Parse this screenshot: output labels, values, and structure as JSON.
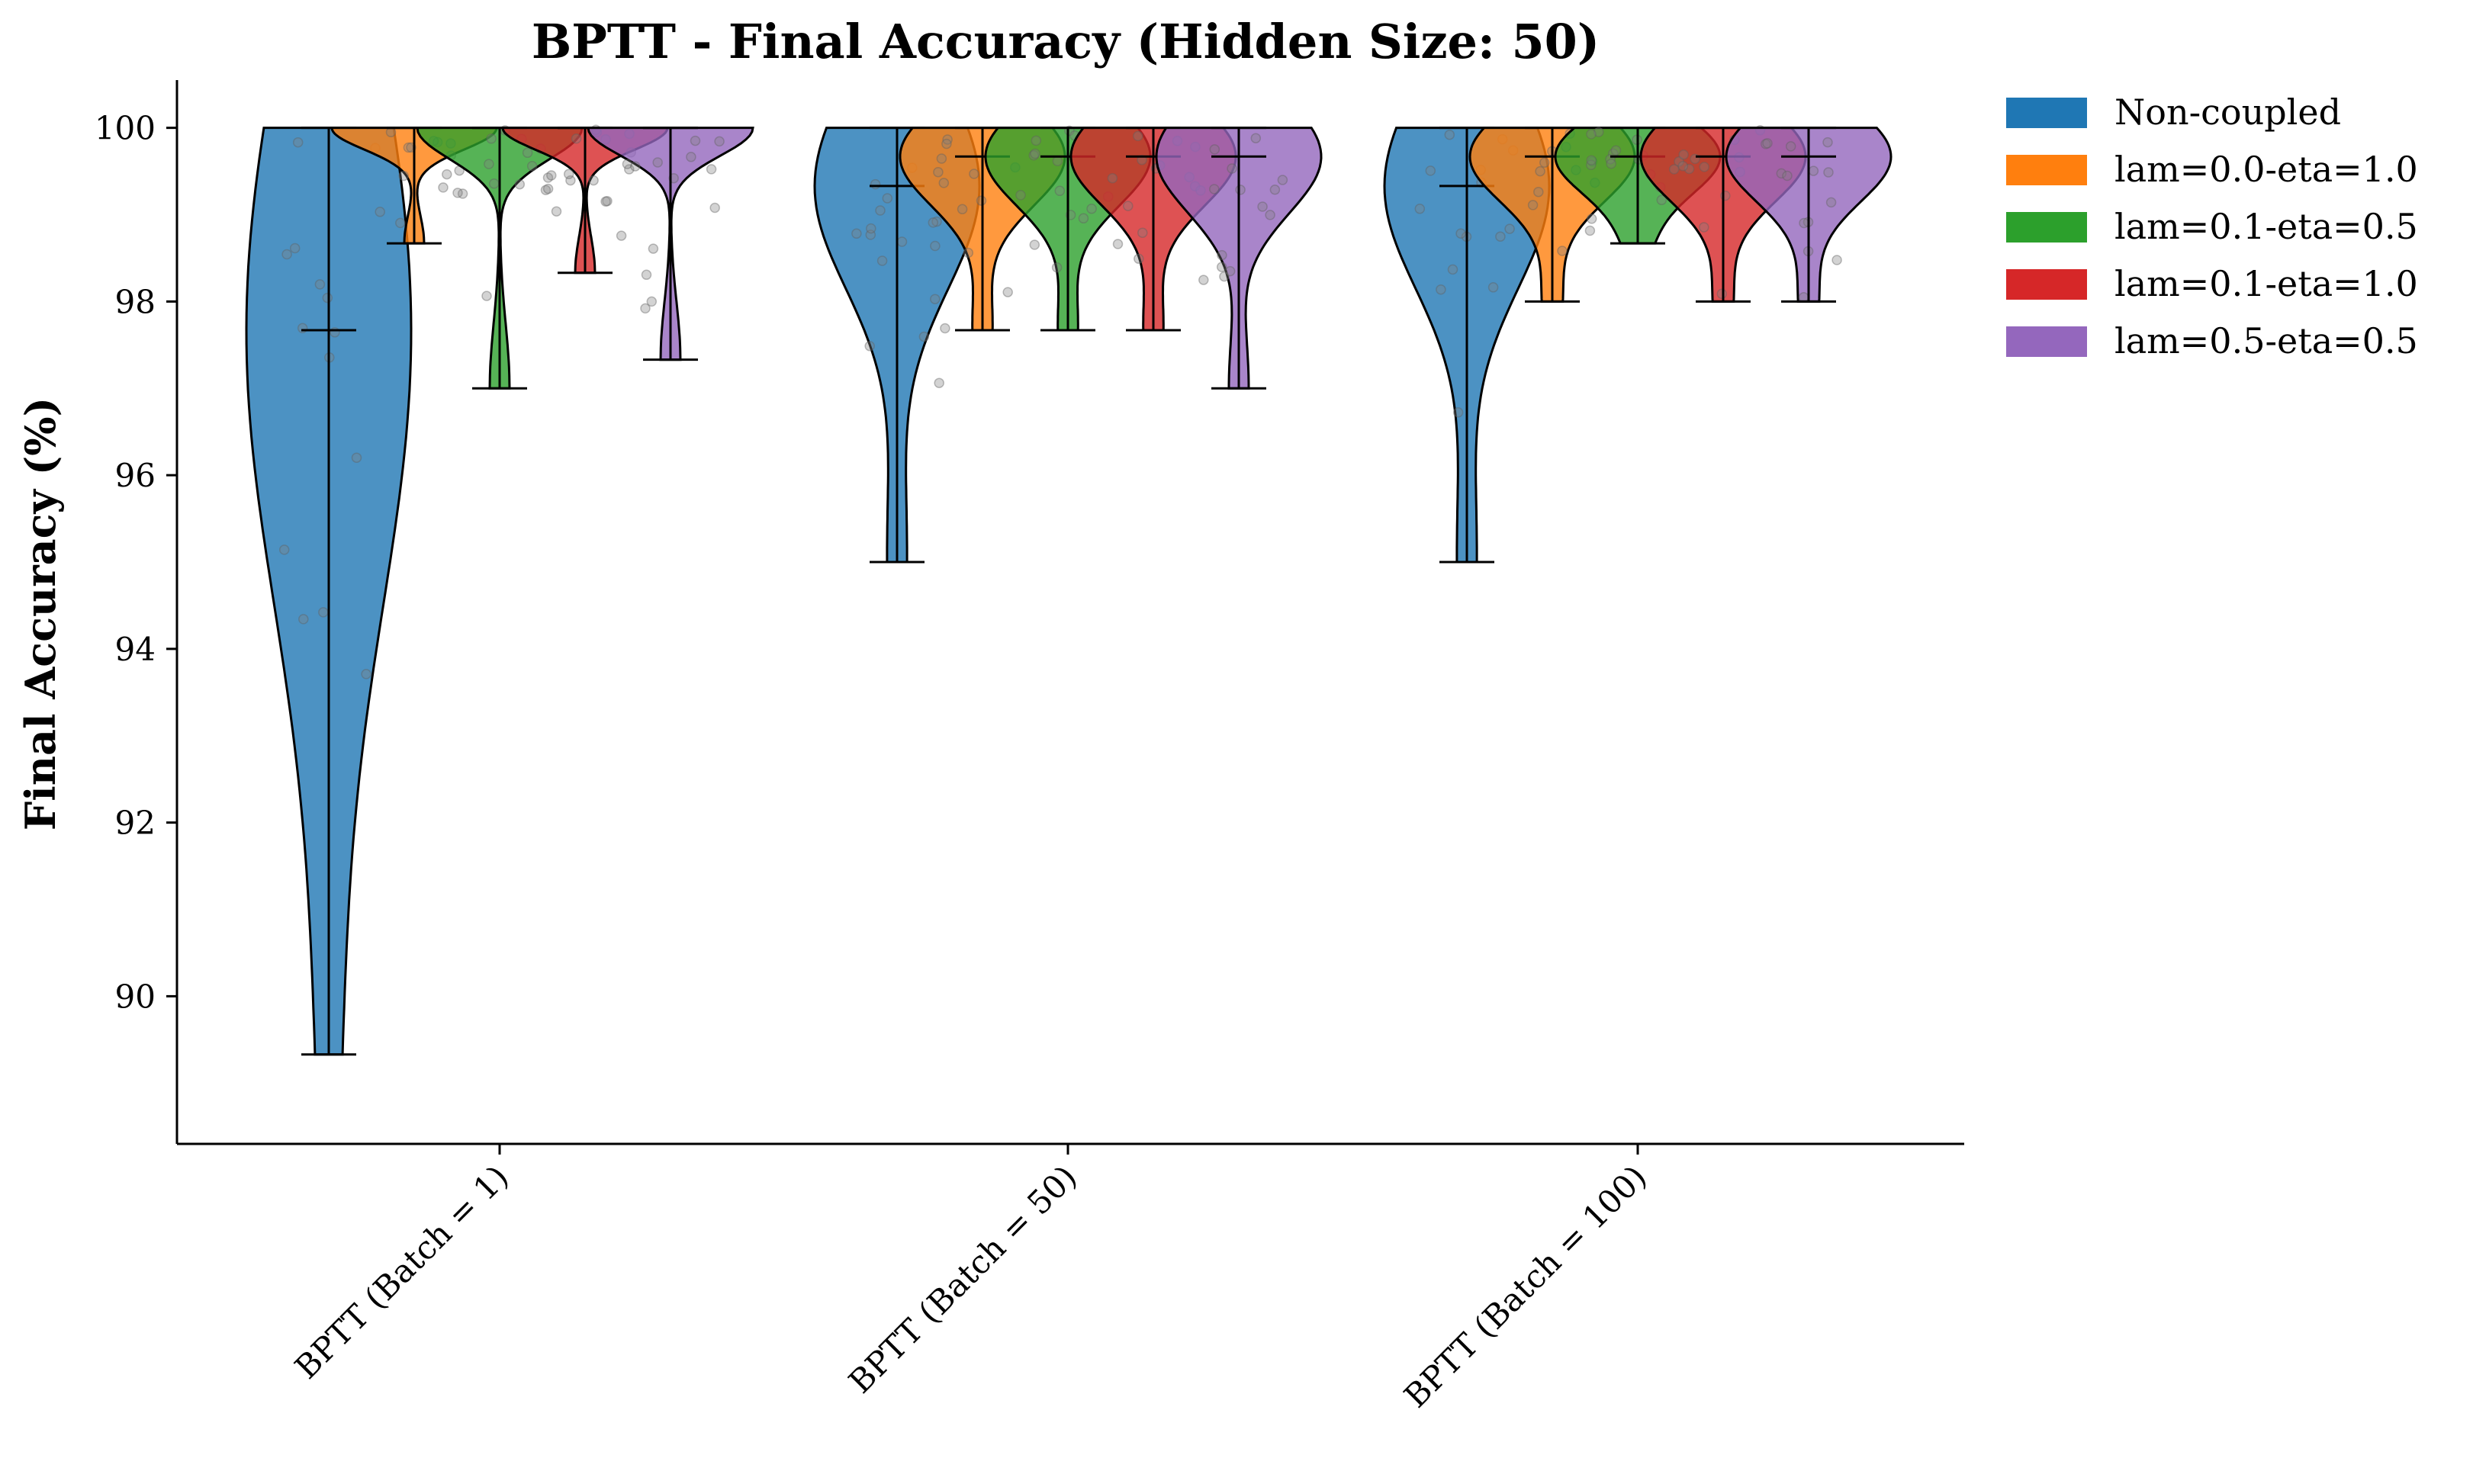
{
  "chart_data": {
    "type": "violin",
    "title": "BPTT - Final Accuracy (Hidden Size: 50)",
    "xlabel": "",
    "ylabel": "Final Accuracy (%)",
    "ylim": [
      88.3,
      100.55
    ],
    "yticks": [
      90,
      92,
      94,
      96,
      98,
      100
    ],
    "grid": false,
    "legend_position": "outside-top-right",
    "categories": [
      "BPTT (Batch = 1)",
      "BPTT (Batch = 50)",
      "BPTT (Batch = 100)"
    ],
    "series": [
      {
        "name": "Non-coupled",
        "color": "#1f77b4",
        "stats": [
          {
            "min": 89.33,
            "median": 97.67,
            "max": 100.0
          },
          {
            "min": 95.0,
            "median": 99.33,
            "max": 100.0
          },
          {
            "min": 95.0,
            "median": 99.33,
            "max": 100.0
          }
        ]
      },
      {
        "name": "lam=0.0-eta=1.0",
        "color": "#ff7f0e",
        "stats": [
          {
            "min": 98.67,
            "median": 100.0,
            "max": 100.0
          },
          {
            "min": 97.67,
            "median": 99.67,
            "max": 100.0
          },
          {
            "min": 98.0,
            "median": 99.67,
            "max": 100.0
          }
        ]
      },
      {
        "name": "lam=0.1-eta=0.5",
        "color": "#2ca02c",
        "stats": [
          {
            "min": 97.0,
            "median": 100.0,
            "max": 100.0
          },
          {
            "min": 97.67,
            "median": 99.67,
            "max": 100.0
          },
          {
            "min": 98.67,
            "median": 99.67,
            "max": 100.0
          }
        ]
      },
      {
        "name": "lam=0.1-eta=1.0",
        "color": "#d62728",
        "stats": [
          {
            "min": 98.33,
            "median": 100.0,
            "max": 100.0
          },
          {
            "min": 97.67,
            "median": 99.67,
            "max": 100.0
          },
          {
            "min": 98.0,
            "median": 99.67,
            "max": 100.0
          }
        ]
      },
      {
        "name": "lam=0.5-eta=0.5",
        "color": "#9467bd",
        "stats": [
          {
            "min": 97.33,
            "median": 100.0,
            "max": 100.0
          },
          {
            "min": 97.0,
            "median": 99.67,
            "max": 100.0
          },
          {
            "min": 98.0,
            "median": 99.67,
            "max": 100.0
          }
        ]
      }
    ]
  }
}
